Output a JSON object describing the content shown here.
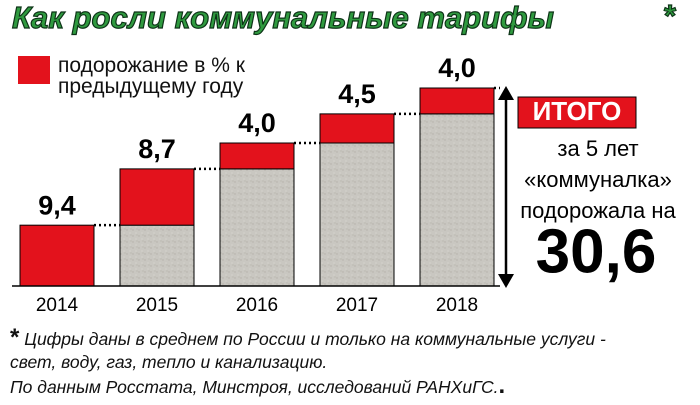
{
  "chart_data": {
    "type": "bar",
    "title": "Как росли коммунальные тарифы",
    "title_mark": "*",
    "categories": [
      "2014",
      "2015",
      "2016",
      "2017",
      "2018"
    ],
    "series": [
      {
        "name": "подорожание в % к предыдущему году",
        "color": "#e3121c",
        "values": [
          9.4,
          8.7,
          4.0,
          4.5,
          4.0
        ],
        "value_labels": [
          "9,4",
          "8,7",
          "4,0",
          "4,5",
          "4,0"
        ]
      }
    ],
    "base_color": "#c9c7c1",
    "total": {
      "badge": "ИТОГО",
      "lines": [
        "за 5 лет",
        "«коммуналка»",
        "подорожала на"
      ],
      "value": "30,6"
    },
    "footnote": {
      "mark": "*",
      "lines": [
        "Цифры даны в среднем по России и только на коммунальные услуги -",
        "свет, воду, газ, тепло и канализацию.",
        "По данным Росстата, Минстроя, исследований РАНХиГС."
      ],
      "end": "."
    }
  }
}
